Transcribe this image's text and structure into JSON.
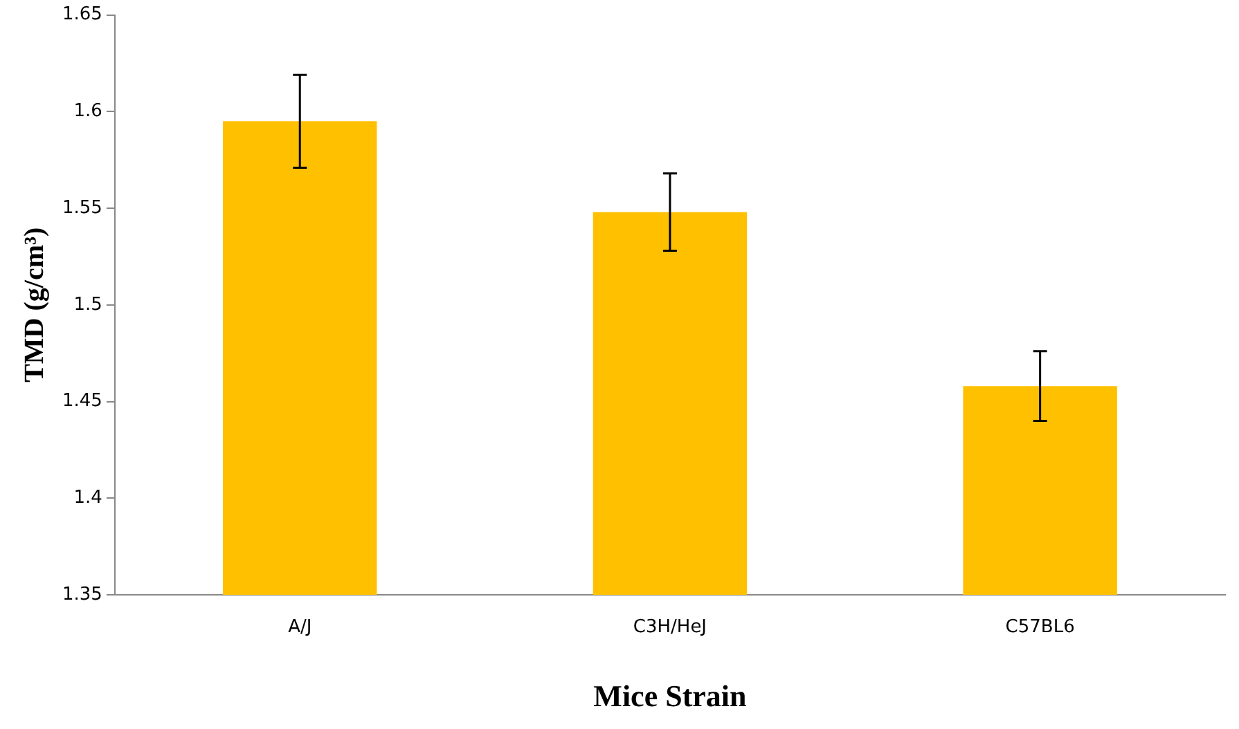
{
  "chart_data": {
    "type": "bar",
    "xlabel": "Mice Strain",
    "ylabel": "TMD (g/cm³)",
    "categories": [
      "A/J",
      "C3H/HeJ",
      "C57BL6"
    ],
    "values": [
      1.595,
      1.548,
      1.458
    ],
    "errors": [
      0.024,
      0.02,
      0.018
    ],
    "color": "#ffc000",
    "ylim": [
      1.35,
      1.65
    ],
    "yticks": [
      1.35,
      1.4,
      1.45,
      1.5,
      1.55,
      1.6,
      1.65
    ],
    "grid": false,
    "legend": false
  }
}
